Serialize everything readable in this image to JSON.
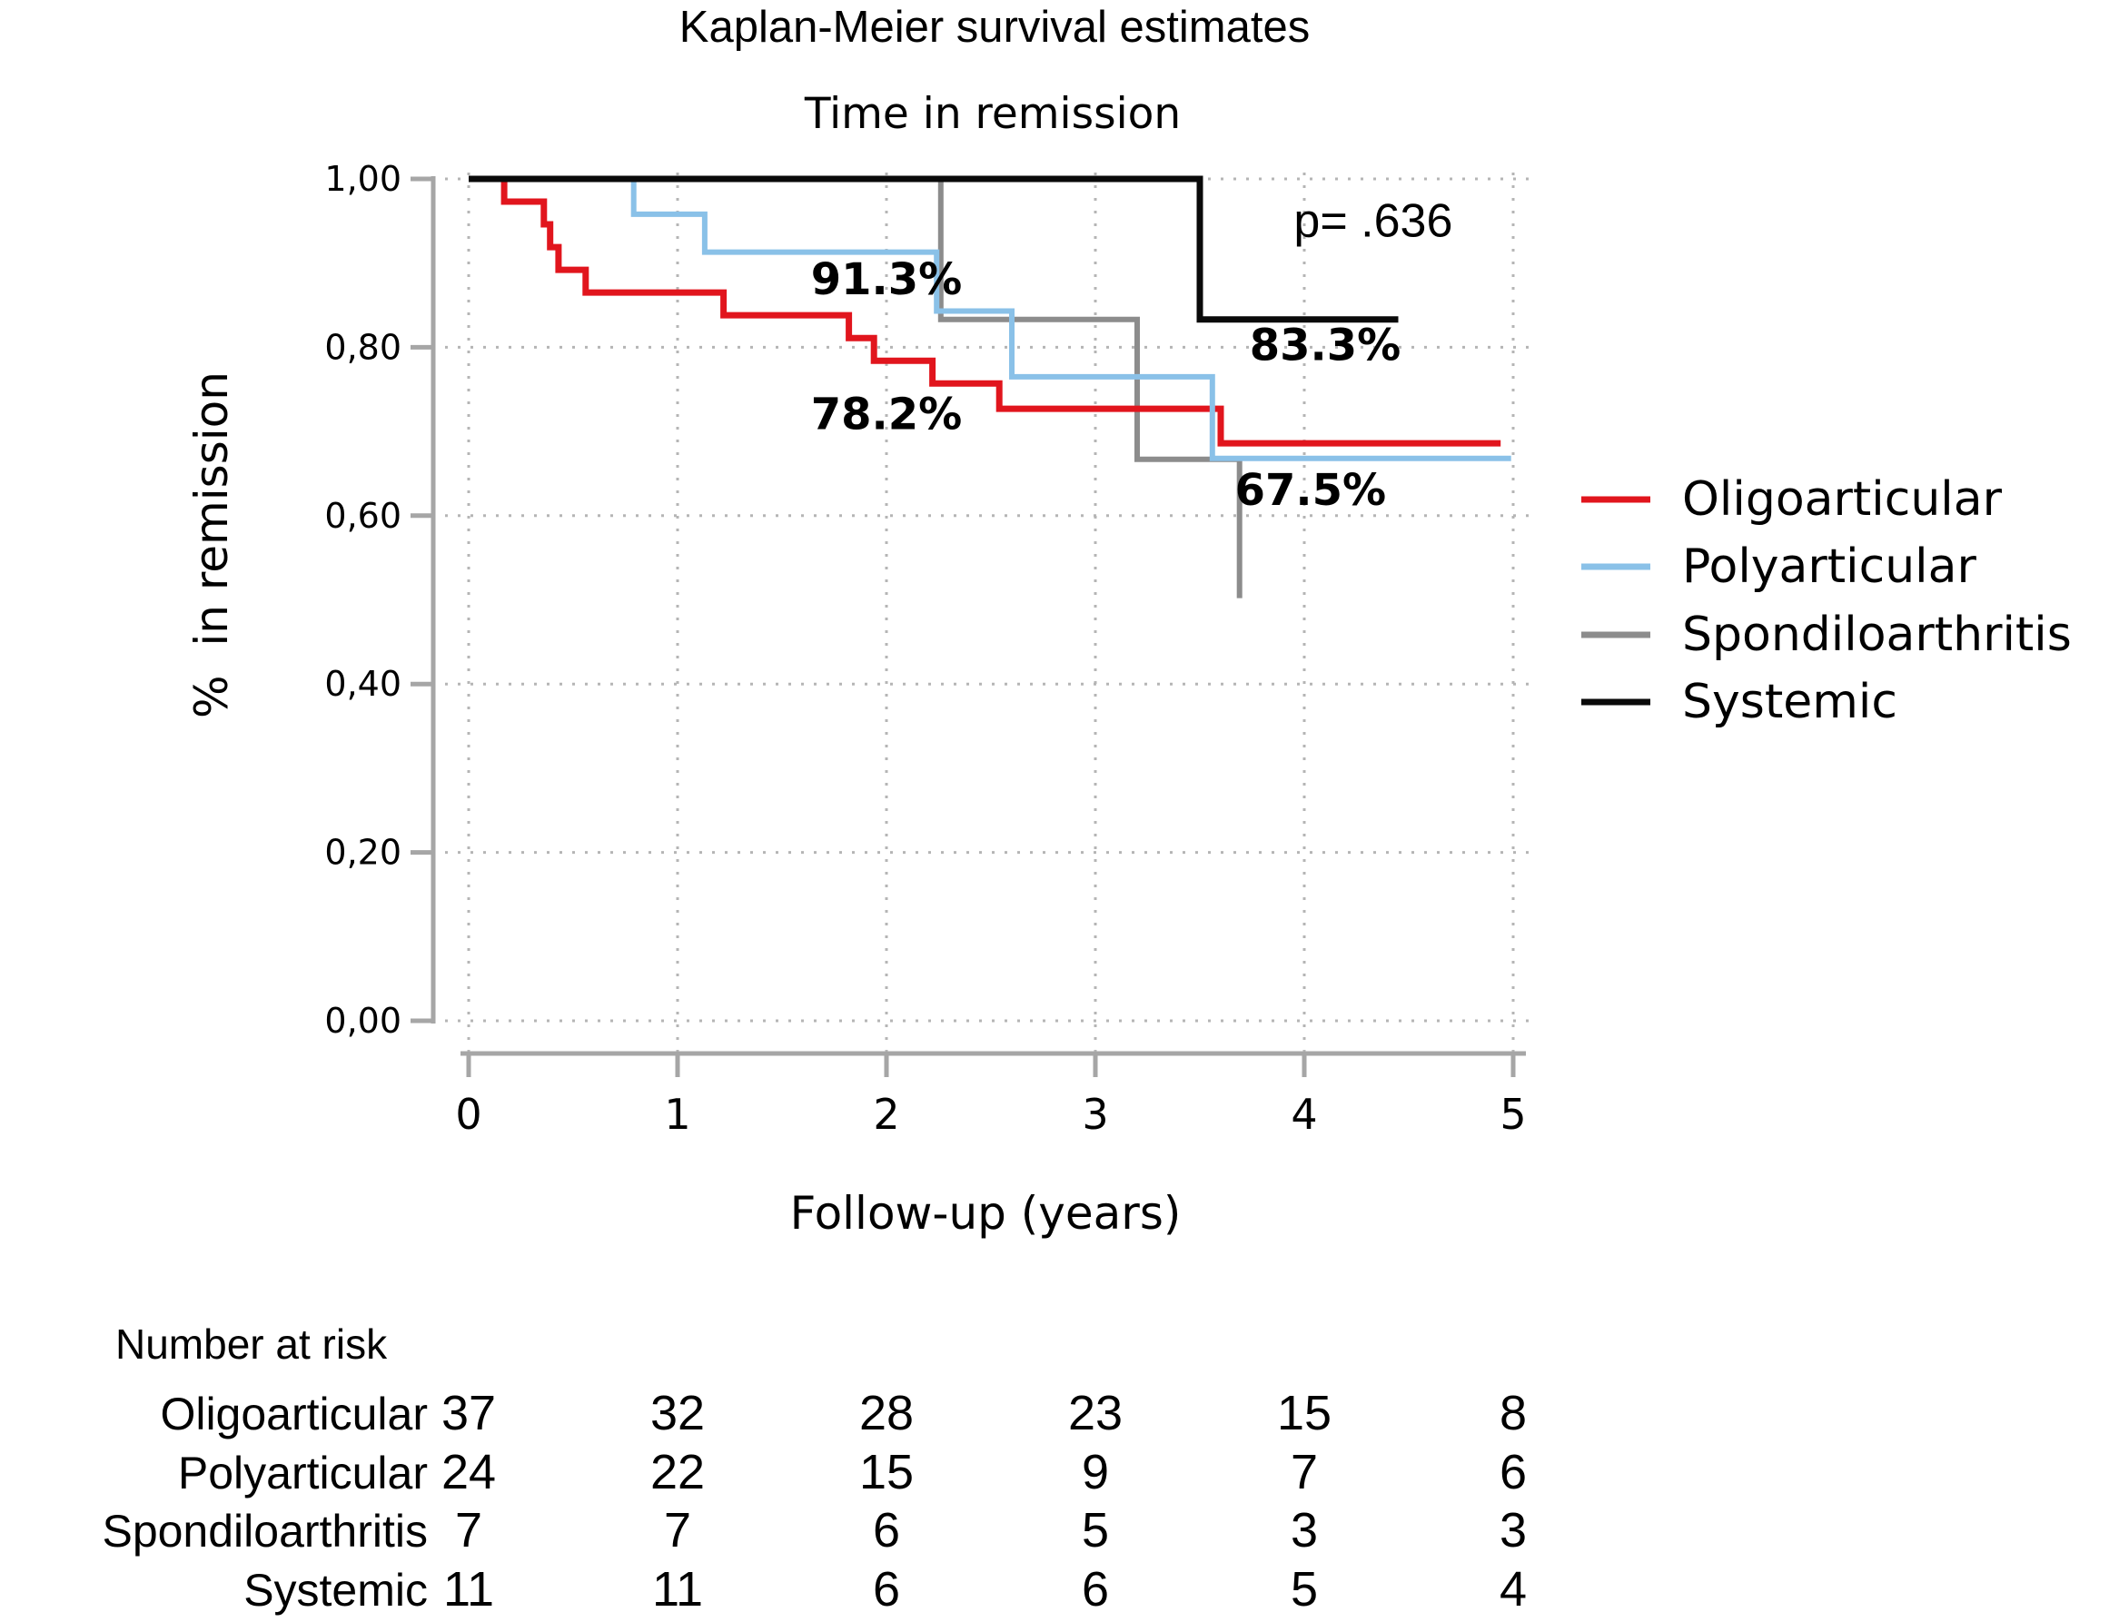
{
  "figure": {
    "title": "Kaplan-Meier survival estimates",
    "subtitle": "Time in remission"
  },
  "colors": {
    "grid": "#b5b5b5",
    "axis": "#a6a6a6",
    "text": "#000000",
    "background": "#ffffff",
    "oligoarticular": "#e1151d",
    "polyarticular": "#8ac1e8",
    "spondiloarthritis": "#8c8c8c",
    "systemic": "#0a0a0a"
  },
  "chart_data": {
    "type": "line",
    "subtype": "kaplan-meier-step",
    "title": "Kaplan-Meier survival estimates",
    "subtitle": "Time in remission",
    "xlabel": "Follow-up (years)",
    "ylabel": "%  in remission",
    "xlim": [
      0,
      5
    ],
    "ylim": [
      0,
      1
    ],
    "grid": "dotted",
    "legend_position": "right",
    "x_ticks": {
      "values": [
        0,
        1,
        2,
        3,
        4,
        5
      ],
      "labels": [
        "0",
        "1",
        "2",
        "3",
        "4",
        "5"
      ]
    },
    "y_ticks": {
      "values": [
        1.0,
        0.8,
        0.6,
        0.4,
        0.2,
        0.0
      ],
      "labels": [
        "1,00",
        "0,80",
        "0,60",
        "0,40",
        "0,20",
        "0,00"
      ]
    },
    "series": [
      {
        "name": "Oligoarticular",
        "color": "#e1151d",
        "width": 7,
        "points": [
          [
            0,
            1
          ],
          [
            0.17,
            0.973
          ],
          [
            0.36,
            0.946
          ],
          [
            0.39,
            0.919
          ],
          [
            0.43,
            0.892
          ],
          [
            0.56,
            0.865
          ],
          [
            1.22,
            0.838
          ],
          [
            1.82,
            0.811
          ],
          [
            1.94,
            0.784
          ],
          [
            2.22,
            0.757
          ],
          [
            2.54,
            0.727
          ],
          [
            3.6,
            0.686
          ],
          [
            4.94,
            0.686
          ]
        ]
      },
      {
        "name": "Polyarticular",
        "color": "#8ac1e8",
        "width": 6,
        "points": [
          [
            0,
            1
          ],
          [
            0.79,
            0.958
          ],
          [
            1.13,
            0.913
          ],
          [
            2.24,
            0.843
          ],
          [
            2.6,
            0.765
          ],
          [
            3.56,
            0.668
          ],
          [
            4.99,
            0.668
          ]
        ]
      },
      {
        "name": "Spondiloarthritis",
        "color": "#8c8c8c",
        "width": 6,
        "points": [
          [
            0,
            1
          ],
          [
            2.26,
            0.833
          ],
          [
            3.2,
            0.667
          ],
          [
            3.69,
            0.667
          ],
          [
            3.69,
            0.502
          ]
        ]
      },
      {
        "name": "Systemic",
        "color": "#0a0a0a",
        "width": 7,
        "points": [
          [
            0,
            1
          ],
          [
            3.5,
            0.833
          ],
          [
            4.45,
            0.833
          ]
        ]
      }
    ],
    "annotations": [
      {
        "text": "91.3%",
        "x": 2.0,
        "y": 0.88,
        "bold": true
      },
      {
        "text": "78.2%",
        "x": 2.0,
        "y": 0.72,
        "bold": true
      },
      {
        "text": "83.3%",
        "x": 4.1,
        "y": 0.802,
        "bold": true
      },
      {
        "text": "67.5%",
        "x": 4.03,
        "y": 0.63,
        "bold": true
      },
      {
        "text": "p= .636",
        "x": 4.33,
        "y": 0.95,
        "bold": false
      }
    ],
    "risk_table": {
      "header": "Number at risk",
      "time_points": [
        0,
        1,
        2,
        3,
        4,
        5
      ],
      "rows": [
        {
          "label": "Oligoarticular",
          "values": [
            "37",
            "32",
            "28",
            "23",
            "15",
            "8"
          ]
        },
        {
          "label": "Polyarticular",
          "values": [
            "24",
            "22",
            "15",
            "9",
            "7",
            "6"
          ]
        },
        {
          "label": "Spondiloarthritis",
          "values": [
            "7",
            "7",
            "6",
            "5",
            "3",
            "3"
          ]
        },
        {
          "label": "Systemic",
          "values": [
            "11",
            "11",
            "6",
            "6",
            "5",
            "4"
          ]
        }
      ]
    }
  }
}
